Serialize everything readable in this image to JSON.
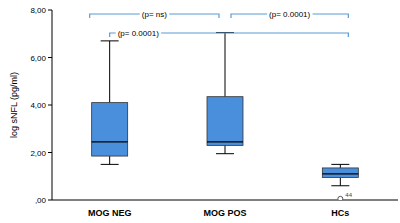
{
  "chart_data": {
    "type": "box",
    "y_label": "log sNFL (pg/ml)",
    "categories": [
      "MOG NEG",
      "MOG POS",
      "HCs"
    ],
    "boxes": [
      {
        "min": 1.5,
        "q1": 1.85,
        "median": 2.45,
        "q3": 4.1,
        "max": 6.7
      },
      {
        "min": 1.95,
        "q1": 2.3,
        "median": 2.45,
        "q3": 4.35,
        "max": 7.05
      },
      {
        "min": 0.6,
        "q1": 0.95,
        "median": 1.1,
        "q3": 1.35,
        "max": 1.5,
        "outliers": [
          0.05
        ],
        "outlier_labels": [
          "44"
        ]
      }
    ],
    "comparisons": [
      {
        "groups": [
          "MOG NEG",
          "MOG POS"
        ],
        "label": "(p= ns)"
      },
      {
        "groups": [
          "MOG POS",
          "HCs"
        ],
        "label": "(p= 0.0001)"
      },
      {
        "groups": [
          "MOG NEG",
          "HCs"
        ],
        "label": "(p= 0.0001)"
      }
    ],
    "color": "#4a8fdb",
    "ylim": [
      0,
      8
    ],
    "yticks": [
      {
        "value": 0,
        "label": ",00"
      },
      {
        "value": 2,
        "label": "2,00"
      },
      {
        "value": 4,
        "label": "4,00"
      },
      {
        "value": 6,
        "label": "6,00"
      },
      {
        "value": 8,
        "label": "8,00"
      }
    ],
    "grid": false
  }
}
